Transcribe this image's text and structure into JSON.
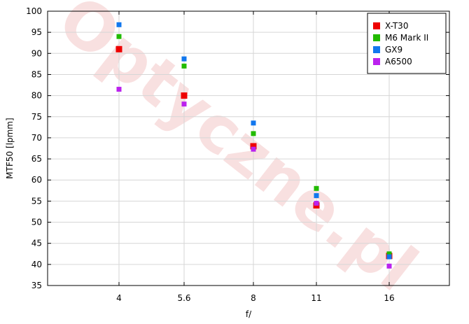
{
  "chart_data": {
    "type": "scatter",
    "xlabel": "f/",
    "ylabel": "MTF50 [lpmm]",
    "categories": [
      "4",
      "5.6",
      "8",
      "11",
      "16"
    ],
    "ylim": [
      35,
      100
    ],
    "yticks": [
      35,
      40,
      45,
      50,
      55,
      60,
      65,
      70,
      75,
      80,
      85,
      90,
      95,
      100
    ],
    "grid": true,
    "legend_position": "top-right",
    "series": [
      {
        "name": "X-T30",
        "color": "#ee0000",
        "values": [
          91.0,
          80.0,
          68.0,
          54.0,
          42.0
        ]
      },
      {
        "name": "M6 Mark II",
        "color": "#22bb00",
        "values": [
          94.0,
          87.0,
          71.0,
          58.0,
          42.5
        ]
      },
      {
        "name": "GX9",
        "color": "#1177ee",
        "values": [
          96.8,
          88.7,
          73.5,
          56.3,
          41.8
        ]
      },
      {
        "name": "A6500",
        "color": "#bb22ee",
        "values": [
          81.5,
          78.0,
          67.3,
          54.5,
          39.6
        ]
      }
    ]
  },
  "watermark": "Optyczne.pl"
}
